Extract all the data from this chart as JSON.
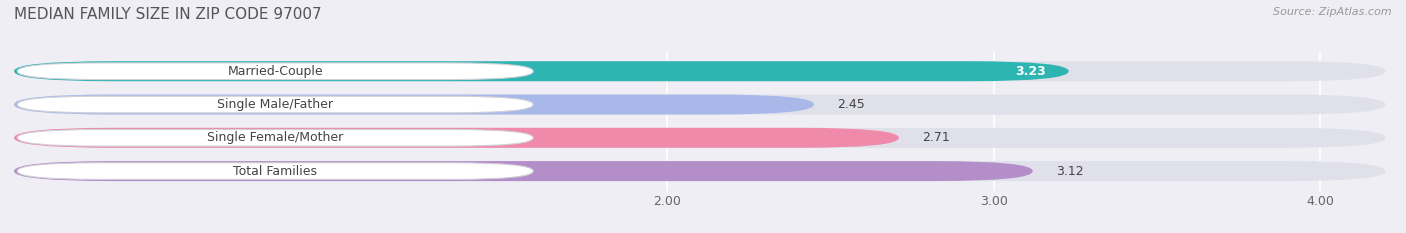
{
  "title": "MEDIAN FAMILY SIZE IN ZIP CODE 97007",
  "source": "Source: ZipAtlas.com",
  "categories": [
    "Married-Couple",
    "Single Male/Father",
    "Single Female/Mother",
    "Total Families"
  ],
  "values": [
    3.23,
    2.45,
    2.71,
    3.12
  ],
  "bar_colors": [
    "#2db5b2",
    "#a8b8e8",
    "#f08aaa",
    "#b48ec8"
  ],
  "xmin": 0,
  "xmax": 4.22,
  "xticks": [
    2.0,
    3.0,
    4.0
  ],
  "background_color": "#eeeef4",
  "bar_background": "#e0e0ea",
  "title_fontsize": 11,
  "value_fontsize": 9,
  "tick_fontsize": 9
}
